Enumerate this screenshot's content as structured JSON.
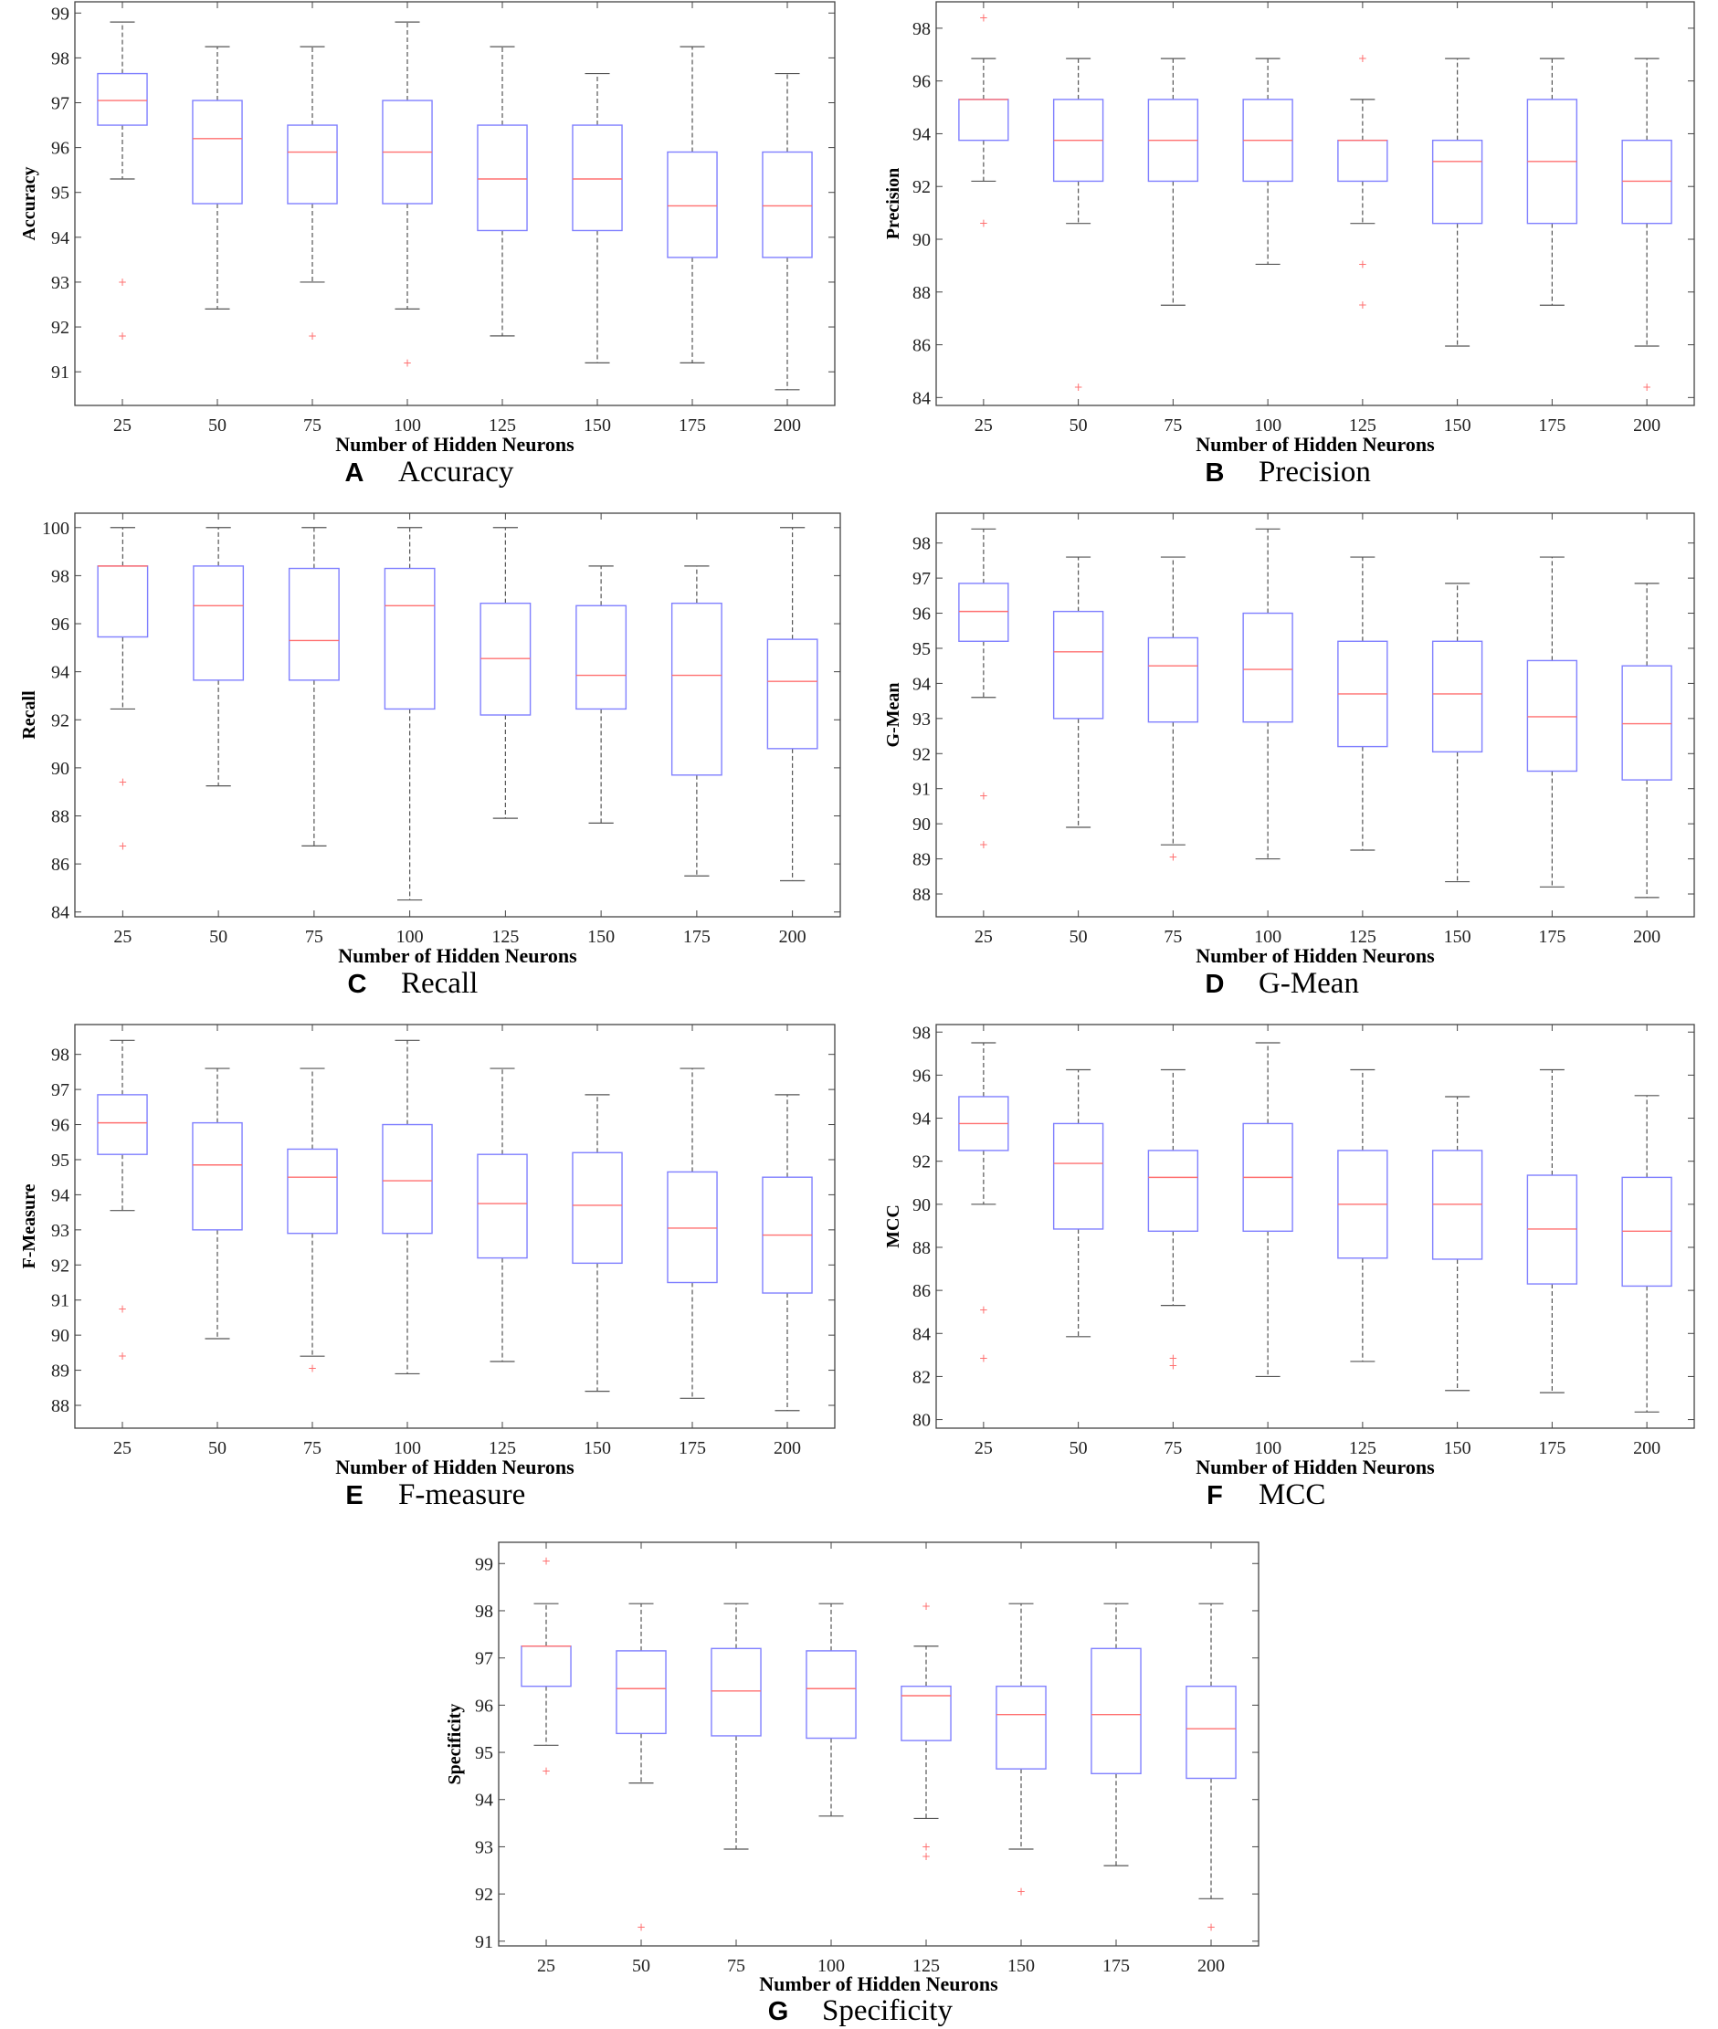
{
  "chart_data": [
    {
      "type": "box",
      "panel": "A",
      "caption": "Accuracy",
      "xlabel": "Number of Hidden Neurons",
      "ylabel": "Accuracy",
      "categories": [
        "25",
        "50",
        "75",
        "100",
        "125",
        "150",
        "175",
        "200"
      ],
      "ylim": [
        90.25,
        99.25
      ],
      "yticks": [
        91,
        92,
        93,
        94,
        95,
        96,
        97,
        98,
        99
      ],
      "boxes": [
        {
          "min": 95.3,
          "q1": 96.5,
          "median": 97.05,
          "q3": 97.65,
          "max": 98.8,
          "outliers": [
            93.0,
            91.8
          ]
        },
        {
          "min": 92.4,
          "q1": 94.75,
          "median": 96.2,
          "q3": 97.05,
          "max": 98.25,
          "outliers": []
        },
        {
          "min": 93.0,
          "q1": 94.75,
          "median": 95.9,
          "q3": 96.5,
          "max": 98.25,
          "outliers": [
            91.8
          ]
        },
        {
          "min": 92.4,
          "q1": 94.75,
          "median": 95.9,
          "q3": 97.05,
          "max": 98.8,
          "outliers": [
            91.2
          ]
        },
        {
          "min": 91.8,
          "q1": 94.15,
          "median": 95.3,
          "q3": 96.5,
          "max": 98.25,
          "outliers": []
        },
        {
          "min": 91.2,
          "q1": 94.15,
          "median": 95.3,
          "q3": 96.5,
          "max": 97.65,
          "outliers": []
        },
        {
          "min": 91.2,
          "q1": 93.55,
          "median": 94.7,
          "q3": 95.9,
          "max": 98.25,
          "outliers": []
        },
        {
          "min": 90.6,
          "q1": 93.55,
          "median": 94.7,
          "q3": 95.9,
          "max": 97.65,
          "outliers": []
        }
      ]
    },
    {
      "type": "box",
      "panel": "B",
      "caption": "Precision",
      "xlabel": "Number of Hidden Neurons",
      "ylabel": "Precision",
      "categories": [
        "25",
        "50",
        "75",
        "100",
        "125",
        "150",
        "175",
        "200"
      ],
      "ylim": [
        83.7,
        99.0
      ],
      "yticks": [
        84,
        86,
        88,
        90,
        92,
        94,
        96,
        98
      ],
      "boxes": [
        {
          "min": 92.2,
          "q1": 93.75,
          "median": 95.3,
          "q3": 95.3,
          "max": 96.85,
          "outliers": [
            98.4,
            90.6
          ]
        },
        {
          "min": 90.6,
          "q1": 92.2,
          "median": 93.75,
          "q3": 95.3,
          "max": 96.85,
          "outliers": [
            84.4
          ]
        },
        {
          "min": 87.5,
          "q1": 92.2,
          "median": 93.75,
          "q3": 95.3,
          "max": 96.85,
          "outliers": []
        },
        {
          "min": 89.05,
          "q1": 92.2,
          "median": 93.75,
          "q3": 95.3,
          "max": 96.85,
          "outliers": []
        },
        {
          "min": 90.6,
          "q1": 92.2,
          "median": 93.75,
          "q3": 93.75,
          "max": 95.3,
          "outliers": [
            96.85,
            89.05,
            87.5
          ]
        },
        {
          "min": 85.95,
          "q1": 90.6,
          "median": 92.95,
          "q3": 93.75,
          "max": 96.85,
          "outliers": []
        },
        {
          "min": 87.5,
          "q1": 90.6,
          "median": 92.95,
          "q3": 95.3,
          "max": 96.85,
          "outliers": []
        },
        {
          "min": 85.95,
          "q1": 90.6,
          "median": 92.2,
          "q3": 93.75,
          "max": 96.85,
          "outliers": [
            84.4
          ]
        }
      ]
    },
    {
      "type": "box",
      "panel": "C",
      "caption": "Recall",
      "xlabel": "Number of Hidden Neurons",
      "ylabel": "Recall",
      "categories": [
        "25",
        "50",
        "75",
        "100",
        "125",
        "150",
        "175",
        "200"
      ],
      "ylim": [
        83.8,
        100.6
      ],
      "yticks": [
        84,
        86,
        88,
        90,
        92,
        94,
        96,
        98,
        100
      ],
      "boxes": [
        {
          "min": 92.45,
          "q1": 95.45,
          "median": 98.4,
          "q3": 98.4,
          "max": 100.0,
          "outliers": [
            89.4,
            86.75
          ]
        },
        {
          "min": 89.25,
          "q1": 93.65,
          "median": 96.75,
          "q3": 98.4,
          "max": 100.0,
          "outliers": []
        },
        {
          "min": 86.75,
          "q1": 93.65,
          "median": 95.3,
          "q3": 98.3,
          "max": 100.0,
          "outliers": []
        },
        {
          "min": 84.5,
          "q1": 92.45,
          "median": 96.75,
          "q3": 98.3,
          "max": 100.0,
          "outliers": []
        },
        {
          "min": 87.9,
          "q1": 92.2,
          "median": 94.55,
          "q3": 96.85,
          "max": 100.0,
          "outliers": []
        },
        {
          "min": 87.7,
          "q1": 92.45,
          "median": 93.85,
          "q3": 96.75,
          "max": 98.4,
          "outliers": []
        },
        {
          "min": 85.5,
          "q1": 89.7,
          "median": 93.85,
          "q3": 96.85,
          "max": 98.4,
          "outliers": []
        },
        {
          "min": 85.3,
          "q1": 90.8,
          "median": 93.6,
          "q3": 95.35,
          "max": 100.0,
          "outliers": []
        }
      ]
    },
    {
      "type": "box",
      "panel": "D",
      "caption": "G-Mean",
      "xlabel": "Number of Hidden Neurons",
      "ylabel": "G-Mean",
      "categories": [
        "25",
        "50",
        "75",
        "100",
        "125",
        "150",
        "175",
        "200"
      ],
      "ylim": [
        87.35,
        98.85
      ],
      "yticks": [
        88,
        89,
        90,
        91,
        92,
        93,
        94,
        95,
        96,
        97,
        98
      ],
      "boxes": [
        {
          "min": 93.6,
          "q1": 95.2,
          "median": 96.05,
          "q3": 96.85,
          "max": 98.4,
          "outliers": [
            90.8,
            89.4
          ]
        },
        {
          "min": 89.9,
          "q1": 93.0,
          "median": 94.9,
          "q3": 96.05,
          "max": 97.6,
          "outliers": []
        },
        {
          "min": 89.4,
          "q1": 92.9,
          "median": 94.5,
          "q3": 95.3,
          "max": 97.6,
          "outliers": [
            89.05
          ]
        },
        {
          "min": 89.0,
          "q1": 92.9,
          "median": 94.4,
          "q3": 96.0,
          "max": 98.4,
          "outliers": []
        },
        {
          "min": 89.25,
          "q1": 92.2,
          "median": 93.7,
          "q3": 95.2,
          "max": 97.6,
          "outliers": []
        },
        {
          "min": 88.35,
          "q1": 92.05,
          "median": 93.7,
          "q3": 95.2,
          "max": 96.85,
          "outliers": []
        },
        {
          "min": 88.2,
          "q1": 91.5,
          "median": 93.05,
          "q3": 94.65,
          "max": 97.6,
          "outliers": []
        },
        {
          "min": 87.9,
          "q1": 91.25,
          "median": 92.85,
          "q3": 94.5,
          "max": 96.85,
          "outliers": []
        }
      ]
    },
    {
      "type": "box",
      "panel": "E",
      "caption": "F-measure",
      "xlabel": "Number of Hidden Neurons",
      "ylabel": "F-Measure",
      "categories": [
        "25",
        "50",
        "75",
        "100",
        "125",
        "150",
        "175",
        "200"
      ],
      "ylim": [
        87.35,
        98.85
      ],
      "yticks": [
        88,
        89,
        90,
        91,
        92,
        93,
        94,
        95,
        96,
        97,
        98
      ],
      "boxes": [
        {
          "min": 93.55,
          "q1": 95.15,
          "median": 96.05,
          "q3": 96.85,
          "max": 98.4,
          "outliers": [
            90.75,
            89.4
          ]
        },
        {
          "min": 89.9,
          "q1": 93.0,
          "median": 94.85,
          "q3": 96.05,
          "max": 97.6,
          "outliers": []
        },
        {
          "min": 89.4,
          "q1": 92.9,
          "median": 94.5,
          "q3": 95.3,
          "max": 97.6,
          "outliers": [
            89.05
          ]
        },
        {
          "min": 88.9,
          "q1": 92.9,
          "median": 94.4,
          "q3": 96.0,
          "max": 98.4,
          "outliers": []
        },
        {
          "min": 89.25,
          "q1": 92.2,
          "median": 93.75,
          "q3": 95.15,
          "max": 97.6,
          "outliers": []
        },
        {
          "min": 88.4,
          "q1": 92.05,
          "median": 93.7,
          "q3": 95.2,
          "max": 96.85,
          "outliers": []
        },
        {
          "min": 88.2,
          "q1": 91.5,
          "median": 93.05,
          "q3": 94.65,
          "max": 97.6,
          "outliers": []
        },
        {
          "min": 87.85,
          "q1": 91.2,
          "median": 92.85,
          "q3": 94.5,
          "max": 96.85,
          "outliers": []
        }
      ]
    },
    {
      "type": "box",
      "panel": "F",
      "caption": "MCC",
      "xlabel": "Number of Hidden Neurons",
      "ylabel": "MCC",
      "categories": [
        "25",
        "50",
        "75",
        "100",
        "125",
        "150",
        "175",
        "200"
      ],
      "ylim": [
        79.6,
        98.35
      ],
      "yticks": [
        80,
        82,
        84,
        86,
        88,
        90,
        92,
        94,
        96,
        98
      ],
      "boxes": [
        {
          "min": 90.0,
          "q1": 92.5,
          "median": 93.75,
          "q3": 95.0,
          "max": 97.5,
          "outliers": [
            85.1,
            82.85
          ]
        },
        {
          "min": 83.85,
          "q1": 88.85,
          "median": 91.9,
          "q3": 93.75,
          "max": 96.25,
          "outliers": []
        },
        {
          "min": 85.3,
          "q1": 88.75,
          "median": 91.25,
          "q3": 92.5,
          "max": 96.25,
          "outliers": [
            82.85,
            82.5
          ]
        },
        {
          "min": 82.0,
          "q1": 88.75,
          "median": 91.25,
          "q3": 93.75,
          "max": 97.5,
          "outliers": []
        },
        {
          "min": 82.7,
          "q1": 87.5,
          "median": 90.0,
          "q3": 92.5,
          "max": 96.25,
          "outliers": []
        },
        {
          "min": 81.35,
          "q1": 87.45,
          "median": 90.0,
          "q3": 92.5,
          "max": 95.0,
          "outliers": []
        },
        {
          "min": 81.25,
          "q1": 86.3,
          "median": 88.85,
          "q3": 91.35,
          "max": 96.25,
          "outliers": []
        },
        {
          "min": 80.35,
          "q1": 86.2,
          "median": 88.75,
          "q3": 91.25,
          "max": 95.05,
          "outliers": []
        }
      ]
    },
    {
      "type": "box",
      "panel": "G",
      "caption": "Specificity",
      "xlabel": "Number of Hidden Neurons",
      "ylabel": "Specificity",
      "categories": [
        "25",
        "50",
        "75",
        "100",
        "125",
        "150",
        "175",
        "200"
      ],
      "ylim": [
        90.9,
        99.45
      ],
      "yticks": [
        91,
        92,
        93,
        94,
        95,
        96,
        97,
        98,
        99
      ],
      "boxes": [
        {
          "min": 95.15,
          "q1": 96.4,
          "median": 97.25,
          "q3": 97.25,
          "max": 98.15,
          "outliers": [
            99.05,
            94.6
          ]
        },
        {
          "min": 94.35,
          "q1": 95.4,
          "median": 96.35,
          "q3": 97.15,
          "max": 98.15,
          "outliers": [
            91.3
          ]
        },
        {
          "min": 92.95,
          "q1": 95.35,
          "median": 96.3,
          "q3": 97.2,
          "max": 98.15,
          "outliers": []
        },
        {
          "min": 93.65,
          "q1": 95.3,
          "median": 96.35,
          "q3": 97.15,
          "max": 98.15,
          "outliers": []
        },
        {
          "min": 93.6,
          "q1": 95.25,
          "median": 96.2,
          "q3": 96.4,
          "max": 97.25,
          "outliers": [
            98.1,
            93.0,
            92.8
          ]
        },
        {
          "min": 92.95,
          "q1": 94.65,
          "median": 95.8,
          "q3": 96.4,
          "max": 98.15,
          "outliers": [
            92.05
          ]
        },
        {
          "min": 92.6,
          "q1": 94.55,
          "median": 95.8,
          "q3": 97.2,
          "max": 98.15,
          "outliers": []
        },
        {
          "min": 91.9,
          "q1": 94.45,
          "median": 95.5,
          "q3": 96.4,
          "max": 98.15,
          "outliers": [
            91.3
          ]
        }
      ]
    }
  ],
  "colors": {
    "box": "#8080ff",
    "median": "#ff7070",
    "whisker": "#555555",
    "outlier": "#ff7070",
    "axes": "#444444"
  }
}
